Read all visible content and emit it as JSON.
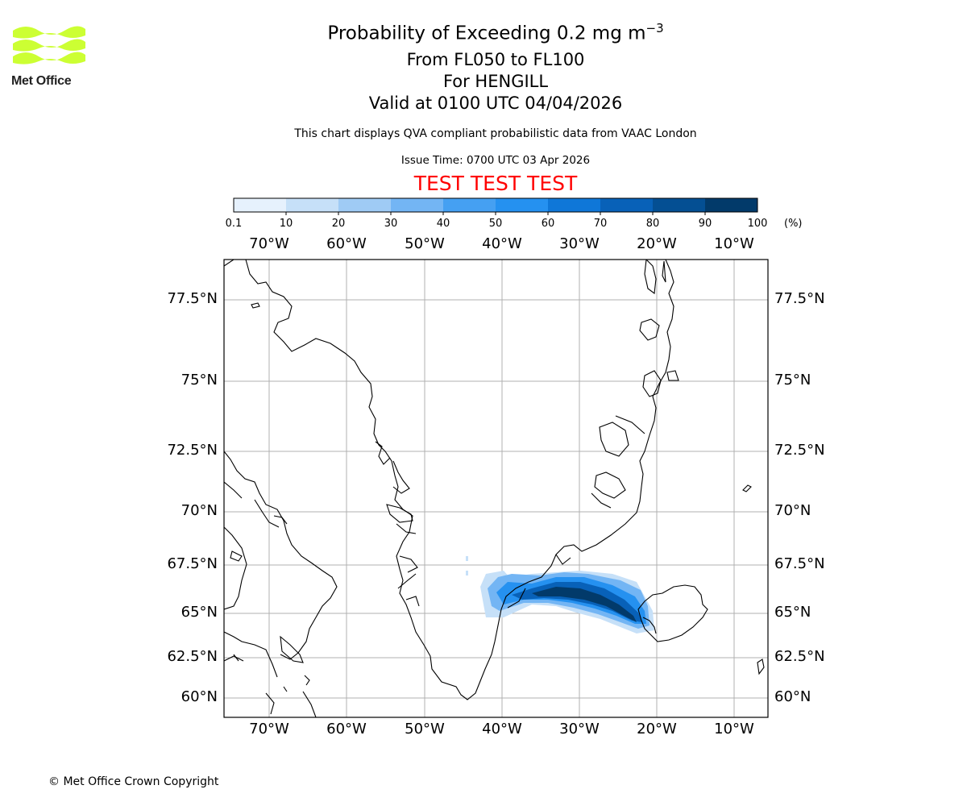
{
  "logo": {
    "text": "Met Office",
    "color": "#ccff33"
  },
  "title": {
    "main_prefix": "Probability of Exceeding 0.2 mg m",
    "main_exponent": "−3",
    "line2": "From FL050 to FL100",
    "line3": "For HENGILL",
    "line4": "Valid at 0100 UTC 04/04/2026"
  },
  "subtitle": "This chart displays QVA compliant probabilistic data from VAAC London",
  "issue_time": "Issue Time: 0700 UTC 03 Apr 2026",
  "test_banner": "TEST TEST TEST",
  "copyright": "© Met Office Crown Copyright",
  "colorbar": {
    "ticks": [
      "0.1",
      "10",
      "20",
      "30",
      "40",
      "50",
      "60",
      "70",
      "80",
      "90",
      "100"
    ],
    "unit": "(%)",
    "colors": [
      "#e6f1fd",
      "#c6e0f8",
      "#9fcbf5",
      "#73b5f4",
      "#45a0f2",
      "#2591f0",
      "#0f77d8",
      "#0861b8",
      "#044f93",
      "#023a6a"
    ]
  },
  "map": {
    "lon_labels": [
      "70°W",
      "60°W",
      "50°W",
      "40°W",
      "30°W",
      "20°W",
      "10°W"
    ],
    "lat_labels": [
      "77.5°N",
      "75°N",
      "72.5°N",
      "70°N",
      "67.5°N",
      "65°N",
      "62.5°N",
      "60°N"
    ]
  }
}
